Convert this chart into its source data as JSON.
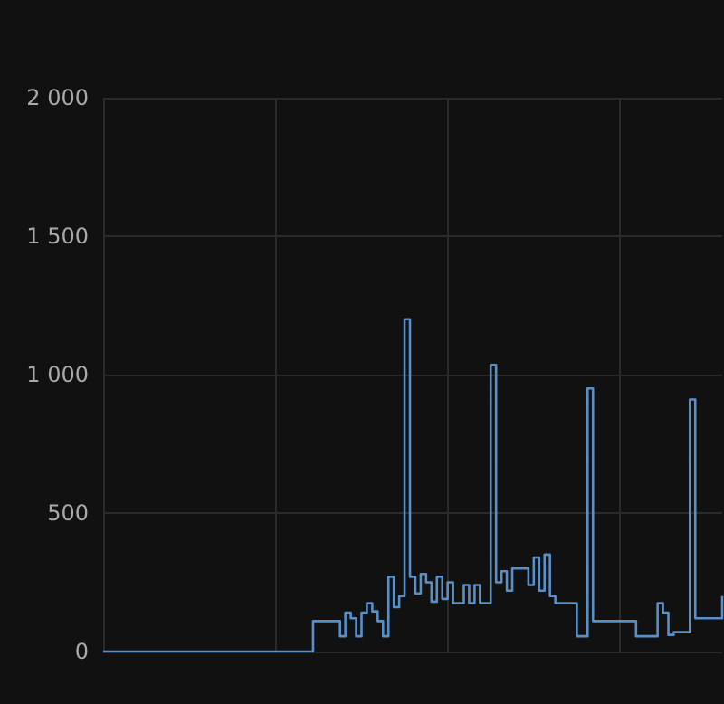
{
  "chart_data": {
    "type": "step",
    "tick_labels": "y",
    "grid": true,
    "line_style": "solid",
    "categories": [
      null,
      null,
      null,
      null,
      null,
      null,
      null,
      null,
      null,
      null,
      null,
      null,
      null,
      null,
      null,
      null,
      null,
      null,
      null,
      null,
      null,
      null,
      null,
      null,
      null,
      null,
      null,
      null,
      null,
      null,
      null,
      null,
      null,
      null,
      null,
      null,
      null,
      null,
      null,
      null,
      null,
      null,
      null,
      null,
      null,
      null,
      null,
      null,
      null,
      null,
      null,
      null,
      null,
      null,
      null,
      null,
      null,
      null,
      null,
      null,
      null,
      null,
      null,
      null,
      null,
      null,
      null,
      null,
      null,
      null,
      null,
      null,
      null,
      null,
      null,
      null,
      null,
      null,
      null,
      null,
      null,
      null,
      null,
      null,
      null,
      null,
      null,
      null,
      null,
      null,
      null,
      null,
      null,
      null,
      null,
      null,
      null,
      null,
      null,
      null,
      null,
      null,
      null,
      null,
      null,
      null,
      null,
      null,
      null,
      null,
      null,
      null,
      null,
      null,
      null,
      null
    ],
    "ylim": [
      0,
      2000
    ],
    "yticks": [
      0,
      500,
      {
        "value": 1000,
        "label": "1 000"
      },
      {
        "value": 1500,
        "label": "1 500"
      },
      {
        "value": 2000,
        "label": "2 000"
      }
    ],
    "series": [
      {
        "color": "#5b8fc7",
        "values": [
          0,
          0,
          0,
          0,
          0,
          0,
          0,
          0,
          0,
          0,
          0,
          0,
          0,
          0,
          0,
          0,
          0,
          0,
          0,
          0,
          0,
          0,
          0,
          0,
          0,
          0,
          0,
          0,
          0,
          0,
          0,
          0,
          0,
          0,
          0,
          0,
          0,
          0,
          0,
          110,
          110,
          110,
          110,
          110,
          55,
          140,
          120,
          55,
          140,
          175,
          145,
          110,
          55,
          270,
          160,
          200,
          1200,
          270,
          210,
          280,
          250,
          180,
          270,
          190,
          250,
          175,
          175,
          240,
          175,
          240,
          175,
          175,
          1035,
          250,
          290,
          220,
          300,
          300,
          300,
          240,
          340,
          220,
          350,
          200,
          175,
          175,
          175,
          175,
          55,
          55,
          950,
          110,
          110,
          110,
          110,
          110,
          110,
          110,
          110,
          55,
          55,
          55,
          55,
          175,
          140,
          60,
          70,
          70,
          70,
          910,
          120,
          120,
          120,
          120,
          120,
          200
        ]
      }
    ]
  }
}
